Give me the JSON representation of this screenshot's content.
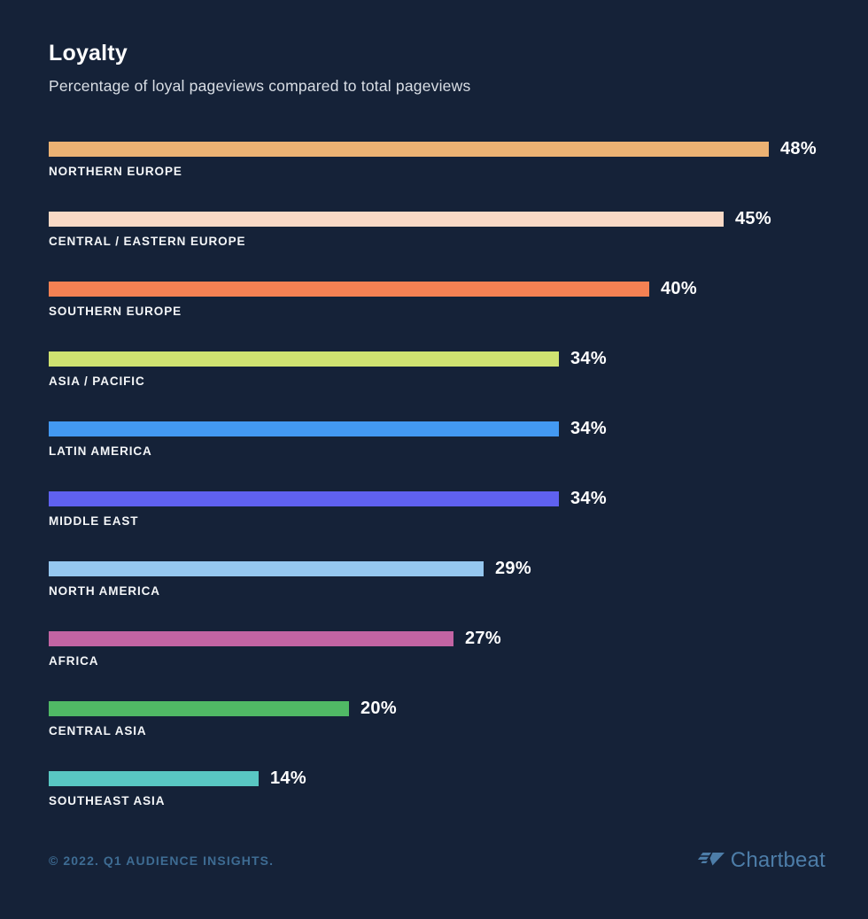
{
  "header": {
    "title": "Loyalty",
    "subtitle": "Percentage of loyal pageviews compared to total pageviews"
  },
  "chart_data": {
    "type": "bar",
    "orientation": "horizontal",
    "title": "Loyalty",
    "subtitle": "Percentage of loyal pageviews compared to total pageviews",
    "value_suffix": "%",
    "xlim": [
      0,
      50
    ],
    "grid": false,
    "legend": false,
    "axis_labels_visible": false,
    "categories": [
      "NORTHERN EUROPE",
      "CENTRAL / EASTERN EUROPE",
      "SOUTHERN EUROPE",
      "ASIA / PACIFIC",
      "LATIN AMERICA",
      "MIDDLE EAST",
      "NORTH AMERICA",
      "AFRICA",
      "CENTRAL ASIA",
      "SOUTHEAST ASIA"
    ],
    "values": [
      48,
      45,
      40,
      34,
      34,
      34,
      29,
      27,
      20,
      14
    ],
    "bars": [
      {
        "label": "NORTHERN EUROPE",
        "value": 48,
        "display_value": "48%",
        "color": "#ecb273"
      },
      {
        "label": "CENTRAL / EASTERN EUROPE",
        "value": 45,
        "display_value": "45%",
        "color": "#f8d9c6"
      },
      {
        "label": "SOUTHERN EUROPE",
        "value": 40,
        "display_value": "40%",
        "color": "#f48153"
      },
      {
        "label": "ASIA / PACIFIC",
        "value": 34,
        "display_value": "34%",
        "color": "#cfe271"
      },
      {
        "label": "LATIN AMERICA",
        "value": 34,
        "display_value": "34%",
        "color": "#4399f2"
      },
      {
        "label": "MIDDLE EAST",
        "value": 34,
        "display_value": "34%",
        "color": "#5f61f0"
      },
      {
        "label": "NORTH AMERICA",
        "value": 29,
        "display_value": "29%",
        "color": "#95c7ef"
      },
      {
        "label": "AFRICA",
        "value": 27,
        "display_value": "27%",
        "color": "#c264a3"
      },
      {
        "label": "CENTRAL ASIA",
        "value": 20,
        "display_value": "20%",
        "color": "#50b965"
      },
      {
        "label": "SOUTHEAST ASIA",
        "value": 14,
        "display_value": "14%",
        "color": "#59c7c3"
      }
    ]
  },
  "footer": {
    "copyright": "© 2022. Q1 AUDIENCE INSIGHTS.",
    "brand": "Chartbeat",
    "brand_icon": "chartbeat-plane-icon"
  },
  "colors": {
    "background": "#152238",
    "title_text": "#ffffff",
    "subtitle_text": "#d9dee5",
    "value_label_text": "#ffffff",
    "category_label_text": "#f4f6f8",
    "footer_text": "#3e6c93",
    "brand_text": "#4d7da8"
  }
}
